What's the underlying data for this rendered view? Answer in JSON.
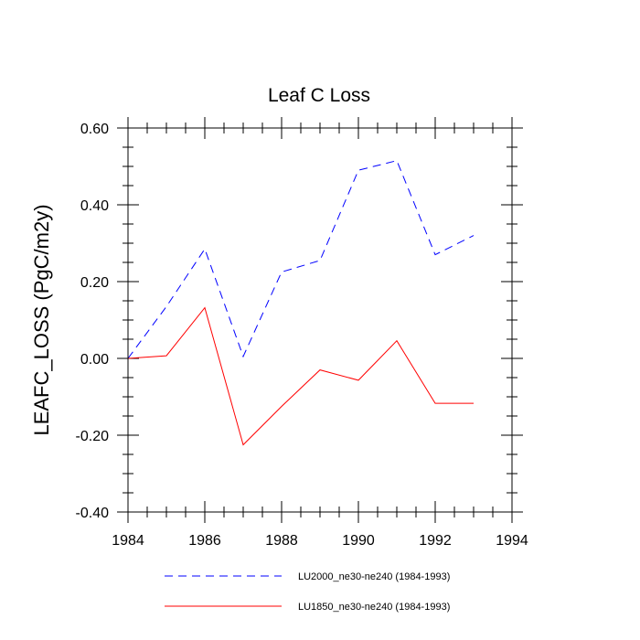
{
  "chart_data": {
    "type": "line",
    "title": "Leaf C Loss",
    "xlabel": "",
    "ylabel": "LEAFC_LOSS  (PgC/m2y)",
    "xlim": [
      1984,
      1994
    ],
    "ylim": [
      -0.4,
      0.6
    ],
    "x_ticks": [
      1984,
      1986,
      1988,
      1990,
      1992,
      1994
    ],
    "x_tick_labels": [
      "1984",
      "1986",
      "1988",
      "1990",
      "1992",
      "1994"
    ],
    "y_ticks": [
      -0.4,
      -0.2,
      0.0,
      0.2,
      0.4,
      0.6
    ],
    "y_tick_labels": [
      "-0.40",
      "-0.20",
      "0.00",
      "0.20",
      "0.40",
      "0.60"
    ],
    "grid": false,
    "legend_position": "bottom",
    "x": [
      1984,
      1985,
      1986,
      1987,
      1988,
      1989,
      1990,
      1991,
      1992,
      1993
    ],
    "series": [
      {
        "name": "LU2000_ne30-ne240 (1984-1993)",
        "color": "#0000ff",
        "style": "dashed",
        "values": [
          0.0,
          0.135,
          0.285,
          0.005,
          0.225,
          0.255,
          0.49,
          0.515,
          0.27,
          0.32
        ]
      },
      {
        "name": "LU1850_ne30-ne240 (1984-1993)",
        "color": "#ff0000",
        "style": "solid",
        "values": [
          0.0,
          0.007,
          0.132,
          -0.225,
          -0.125,
          -0.03,
          -0.057,
          0.046,
          -0.117,
          -0.117
        ]
      }
    ]
  }
}
